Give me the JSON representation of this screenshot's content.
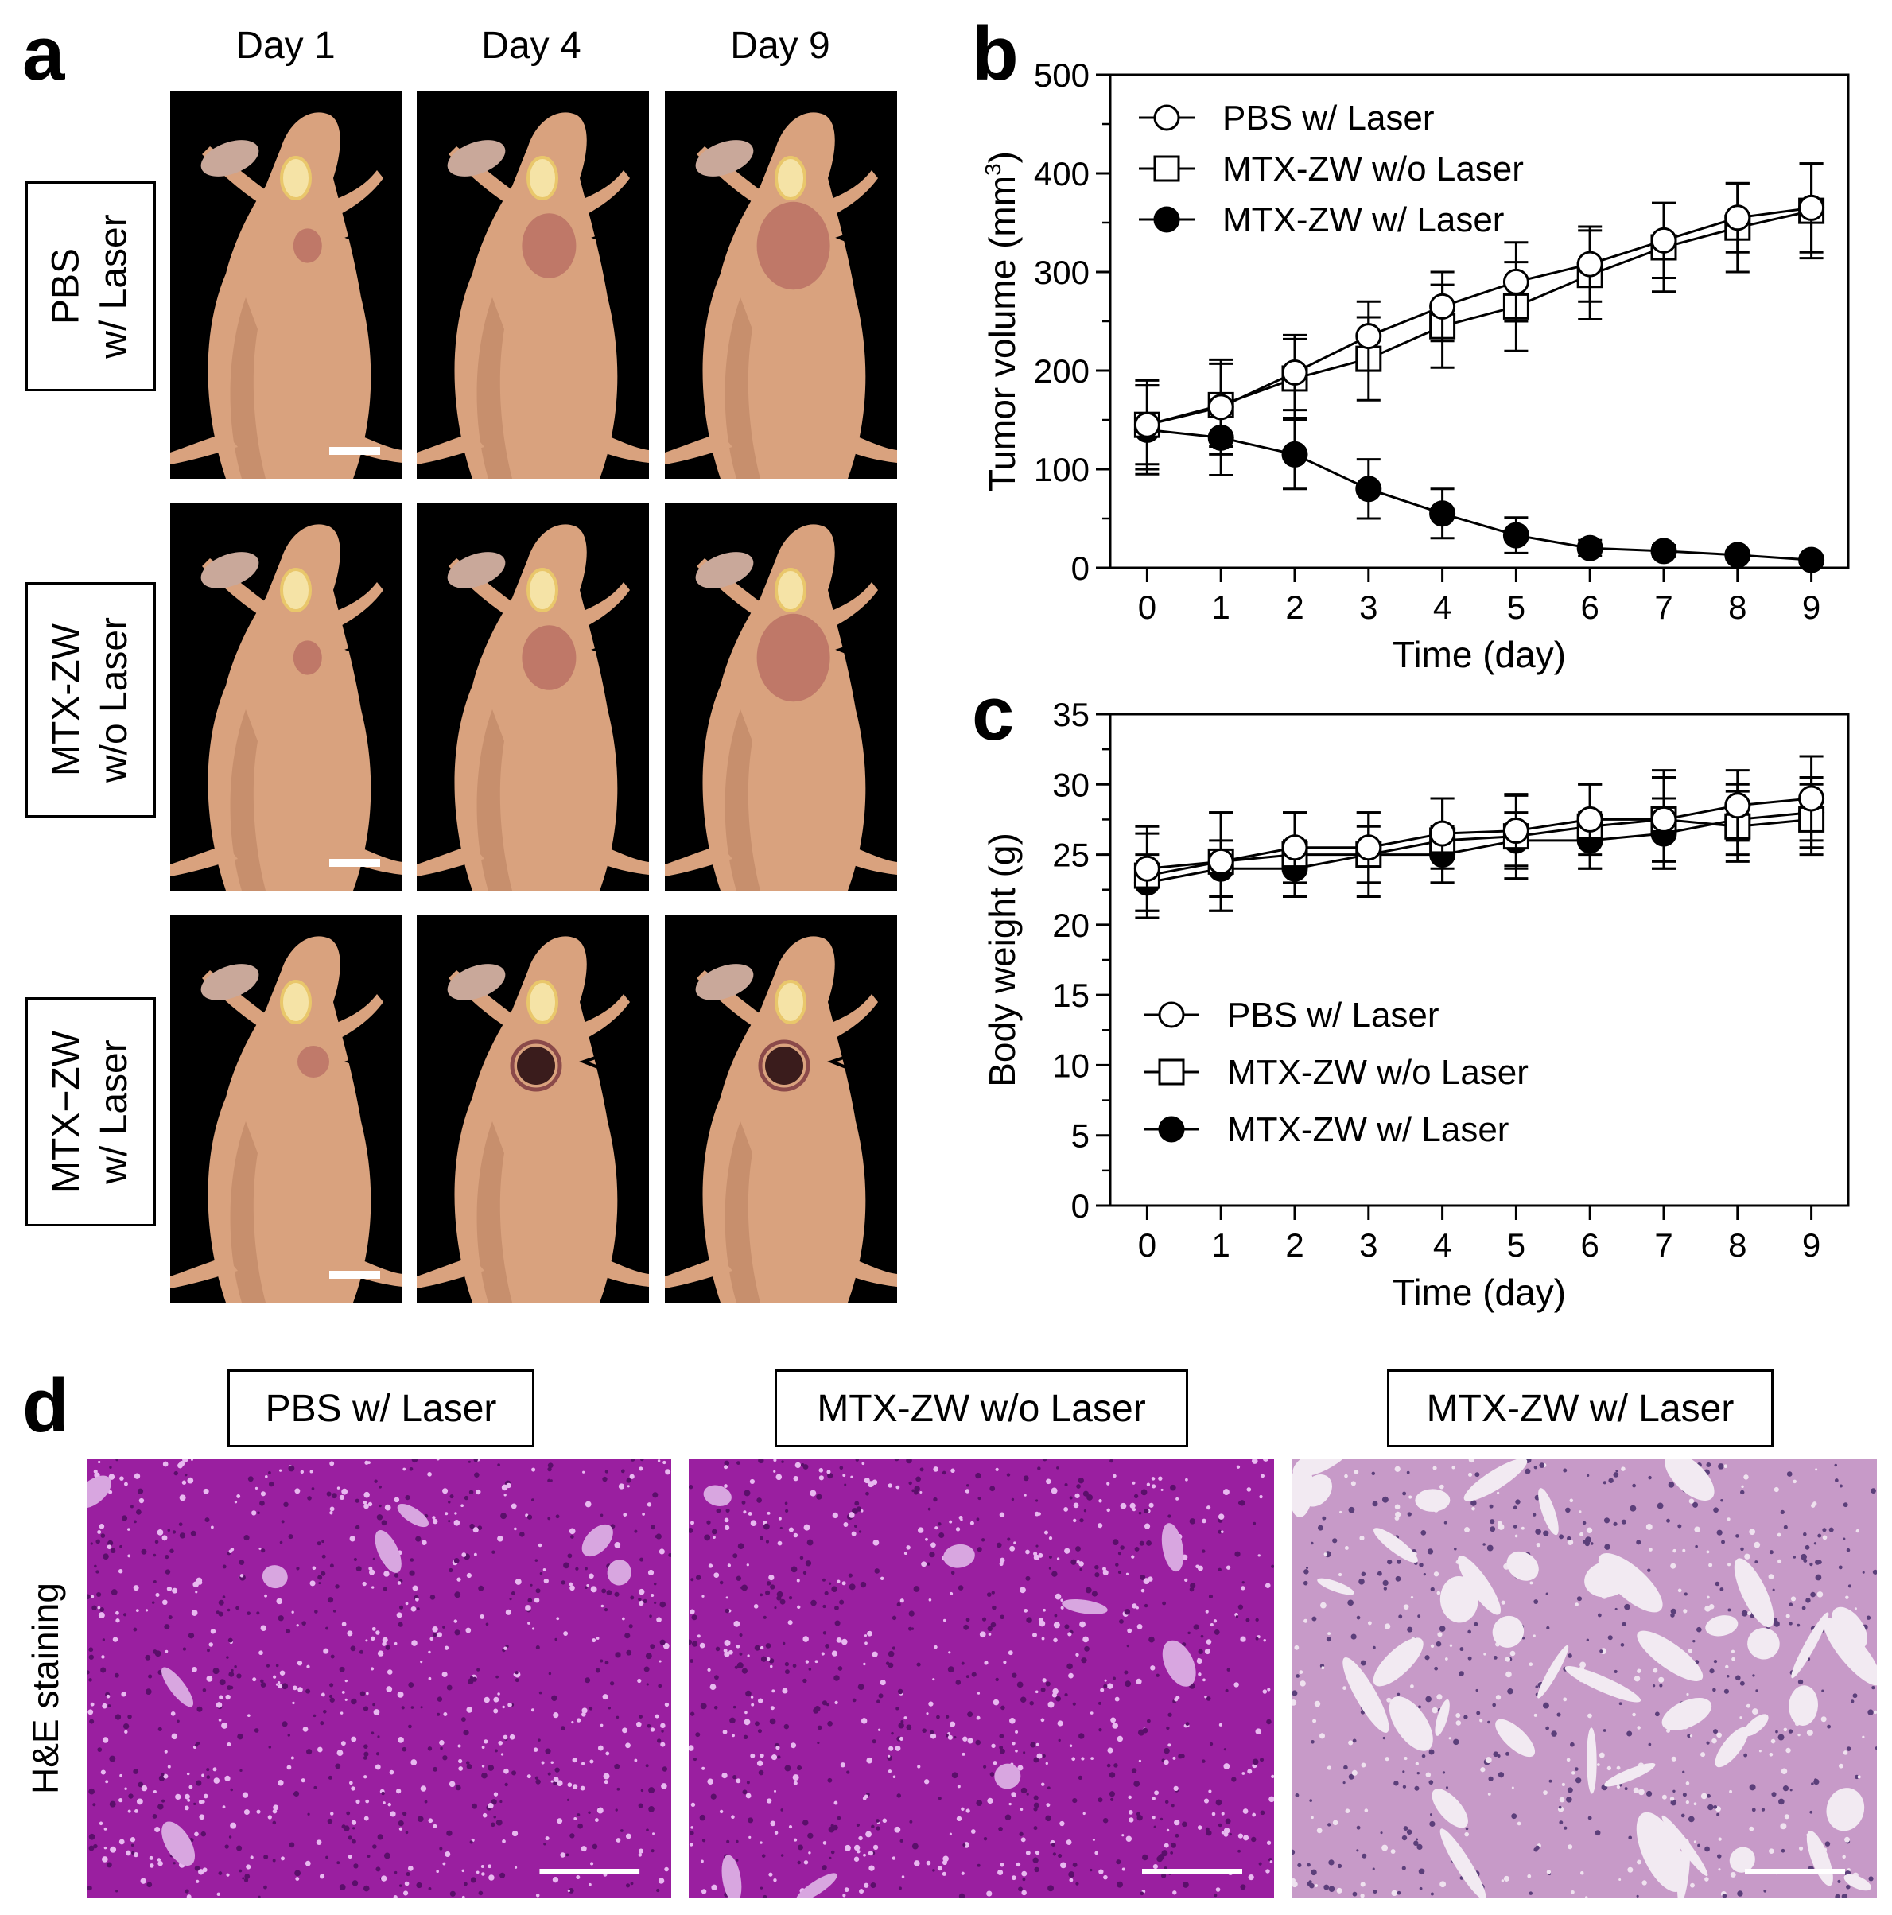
{
  "panels": {
    "a": "a",
    "b": "b",
    "c": "c",
    "d": "d"
  },
  "days": [
    "Day 1",
    "Day 4",
    "Day 9"
  ],
  "rows": [
    {
      "line1": "PBS",
      "line2": "w/ Laser",
      "tumor": "none"
    },
    {
      "line1": "MTX-ZW",
      "line2": "w/o Laser",
      "tumor": "none"
    },
    {
      "line1": "MTX−ZW",
      "line2": "w/ Laser",
      "tumor": "ablated"
    }
  ],
  "he": {
    "side_label": "H&E staining",
    "titles": [
      "PBS w/ Laser",
      "MTX-ZW w/o Laser",
      "MTX-ZW w/ Laser"
    ]
  },
  "colors": {
    "skin": "#d9a27e",
    "skin_shadow": "#b67c5c",
    "tumor": "#b56a62",
    "necrotic": "#3a1c1c",
    "he_dense": "#9a1fa0",
    "he_light": "#c79ac8"
  },
  "chart_data": [
    {
      "type": "line",
      "panel": "b",
      "xlabel": "Time (day)",
      "ylabel": "Tumor volume (mm",
      "ylabel_sup": "3",
      "ylabel_end": ")",
      "xlim": [
        0,
        9
      ],
      "ylim": [
        0,
        500
      ],
      "xticks": [
        0,
        1,
        2,
        3,
        4,
        5,
        6,
        7,
        8,
        9
      ],
      "yticks": [
        0,
        100,
        200,
        300,
        400,
        500
      ],
      "legend": "top-left",
      "x": [
        0,
        1,
        2,
        3,
        4,
        5,
        6,
        7,
        8,
        9
      ],
      "series": [
        {
          "name": "PBS w/ Laser",
          "marker": "open-circle",
          "values": [
            145,
            163,
            198,
            235,
            265,
            290,
            308,
            332,
            355,
            365
          ],
          "errors": [
            45,
            48,
            38,
            35,
            35,
            40,
            38,
            38,
            35,
            45
          ]
        },
        {
          "name": "MTX-ZW w/o Laser",
          "marker": "open-square",
          "values": [
            145,
            165,
            192,
            212,
            245,
            265,
            297,
            325,
            345,
            362
          ],
          "errors": [
            40,
            42,
            40,
            42,
            42,
            45,
            45,
            45,
            45,
            48
          ]
        },
        {
          "name": "MTX-ZW w/ Laser",
          "marker": "filled-circle",
          "values": [
            140,
            132,
            115,
            80,
            55,
            33,
            20,
            17,
            13,
            8
          ],
          "errors": [
            45,
            38,
            35,
            30,
            25,
            18,
            8,
            6,
            5,
            4
          ]
        }
      ]
    },
    {
      "type": "line",
      "panel": "c",
      "xlabel": "Time (day)",
      "ylabel": "Body weight (g)",
      "xlim": [
        0,
        9
      ],
      "ylim": [
        0,
        35
      ],
      "xticks": [
        0,
        1,
        2,
        3,
        4,
        5,
        6,
        7,
        8,
        9
      ],
      "yticks": [
        0,
        5,
        10,
        15,
        20,
        25,
        30,
        35
      ],
      "legend": "bottom-left",
      "x": [
        0,
        1,
        2,
        3,
        4,
        5,
        6,
        7,
        8,
        9
      ],
      "series": [
        {
          "name": "PBS w/ Laser",
          "marker": "open-circle",
          "values": [
            24,
            24.5,
            25.5,
            25.5,
            26.5,
            26.7,
            27.5,
            27.5,
            28.5,
            29
          ],
          "errors": [
            3,
            3.5,
            2.5,
            2.5,
            2.5,
            2.5,
            2.5,
            3.5,
            2.5,
            3
          ]
        },
        {
          "name": "MTX-ZW w/o Laser",
          "marker": "open-square",
          "values": [
            23.5,
            24.5,
            25,
            25,
            26,
            26.3,
            27,
            27.5,
            27,
            27.5
          ],
          "errors": [
            3,
            3.5,
            3,
            3,
            3,
            3,
            3,
            3,
            2.5,
            2.5
          ]
        },
        {
          "name": "MTX-ZW w/ Laser",
          "marker": "filled-circle",
          "values": [
            23,
            24,
            24,
            25,
            25,
            26,
            26,
            26.5,
            27.5,
            28
          ],
          "errors": [
            2,
            2,
            2,
            2,
            2,
            2,
            2,
            2.5,
            2.5,
            2.5
          ]
        }
      ]
    }
  ]
}
